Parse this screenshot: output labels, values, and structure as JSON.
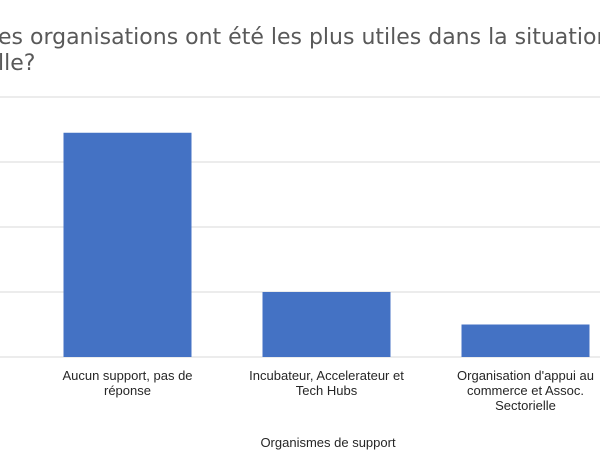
{
  "chart_data": {
    "type": "bar",
    "title_lines": [
      "es organisations ont été les plus utiles dans la situation",
      "lle?"
    ],
    "categories": [
      [
        "Aucun support, pas de",
        "réponse"
      ],
      [
        "Incubateur, Accelerateur et",
        "Tech Hubs"
      ],
      [
        "Organisation d'appui au",
        "commerce et Assoc.",
        "Sectorielle"
      ]
    ],
    "values": [
      6.9,
      2.0,
      1.0
    ],
    "xlabel": "Organismes de support",
    "ylabel": "",
    "ylim": [
      0,
      8
    ],
    "grid": true,
    "bar_color": "#4472C4",
    "grid_color": "#D9D9D9"
  }
}
